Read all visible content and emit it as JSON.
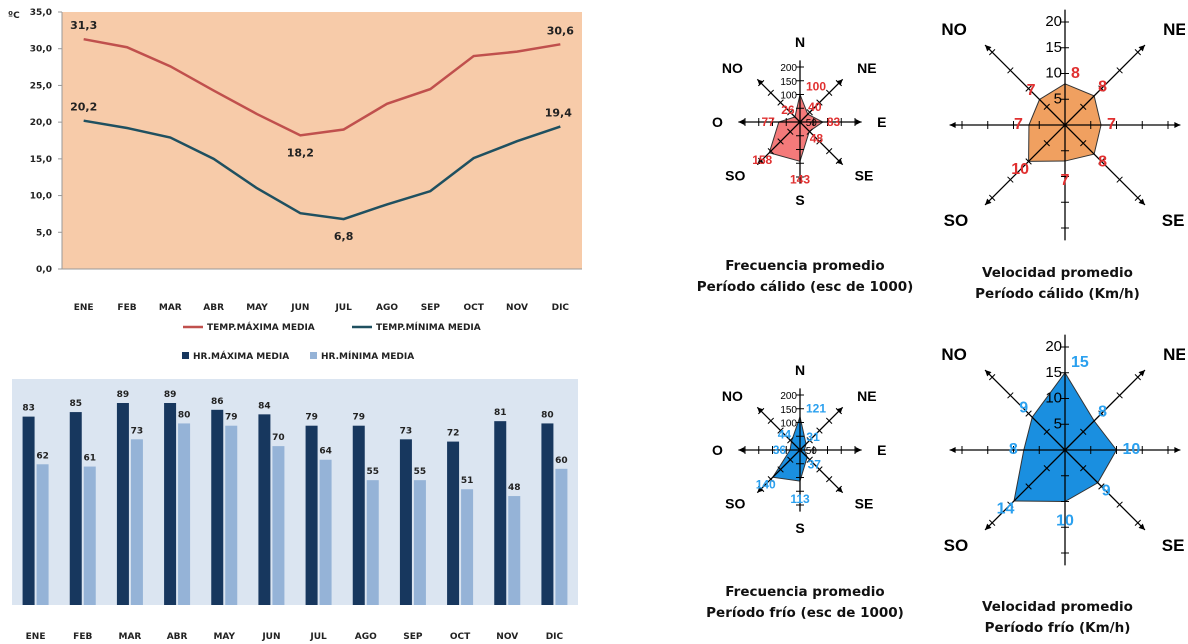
{
  "chart_data": [
    {
      "type": "line",
      "ylabel": "ºC",
      "categories": [
        "ENE",
        "FEB",
        "MAR",
        "ABR",
        "MAY",
        "JUN",
        "JUL",
        "AGO",
        "SEP",
        "OCT",
        "NOV",
        "DIC"
      ],
      "ylim": [
        0,
        35
      ],
      "yticks": [
        "0,0",
        "5,0",
        "10,0",
        "15,0",
        "20,0",
        "25,0",
        "30,0",
        "35,0"
      ],
      "grid": false,
      "legend_position": "bottom",
      "series": [
        {
          "name": "TEMP.MÁXIMA MEDIA",
          "color": "#c0504d",
          "values": [
            31.3,
            30.2,
            27.6,
            24.3,
            21.1,
            18.2,
            19.0,
            22.5,
            24.5,
            29.0,
            29.6,
            30.6
          ]
        },
        {
          "name": "TEMP.MÍNIMA MEDIA",
          "color": "#1f5060",
          "values": [
            20.2,
            19.2,
            17.9,
            15.0,
            11.0,
            7.6,
            6.8,
            8.8,
            10.6,
            15.1,
            17.4,
            19.4
          ]
        }
      ],
      "data_labels": [
        {
          "series": 0,
          "index": 0,
          "text": "31,3"
        },
        {
          "series": 0,
          "index": 5,
          "text": "18,2"
        },
        {
          "series": 0,
          "index": 11,
          "text": "30,6"
        },
        {
          "series": 1,
          "index": 0,
          "text": "20,2"
        },
        {
          "series": 1,
          "index": 6,
          "text": "6,8"
        },
        {
          "series": 1,
          "index": 11,
          "text": "19,4"
        }
      ],
      "background_color": "#f7cba9"
    },
    {
      "type": "bar",
      "categories": [
        "ENE",
        "FEB",
        "MAR",
        "ABR",
        "MAY",
        "JUN",
        "JUL",
        "AGO",
        "SEP",
        "OCT",
        "NOV",
        "DIC"
      ],
      "ylim": [
        0,
        100
      ],
      "legend_position": "top",
      "series": [
        {
          "name": "HR.MÁXIMA MEDIA",
          "color": "#17375e",
          "values": [
            83,
            85,
            89,
            89,
            86,
            84,
            79,
            79,
            73,
            72,
            81,
            80
          ]
        },
        {
          "name": "HR.MÍNIMA MEDIA",
          "color": "#95b3d7",
          "values": [
            62,
            61,
            73,
            80,
            79,
            70,
            64,
            55,
            55,
            51,
            48,
            60
          ]
        }
      ],
      "background_color": "#dbe5f1"
    },
    {
      "type": "radar",
      "directions": [
        "N",
        "NE",
        "E",
        "SE",
        "S",
        "SO",
        "O",
        "NO"
      ],
      "rmax": 200,
      "tick_labels": [
        "200",
        "150",
        "100"
      ],
      "e_tick_label": "50",
      "color": "#f47a7a",
      "label_color": "#e03030",
      "values": [
        100,
        40,
        83,
        48,
        143,
        158,
        77,
        26
      ],
      "value_labels": [
        "100",
        "40",
        "83",
        "48",
        "143",
        "158",
        "77",
        "26"
      ],
      "caption": [
        "Frecuencia promedio",
        "Período cálido (esc de 1000)"
      ]
    },
    {
      "type": "radar",
      "directions": [
        "N",
        "NE",
        "E",
        "SE",
        "S",
        "SO",
        "O",
        "NO"
      ],
      "rmax": 20,
      "tick_labels": [
        "20",
        "15",
        "10",
        "5"
      ],
      "color": "#f0a060",
      "label_color": "#e03030",
      "values": [
        8,
        8,
        7,
        8,
        7,
        10,
        7,
        7
      ],
      "value_labels": [
        "8",
        "8",
        "7",
        "8",
        "7",
        "10",
        "7",
        "7"
      ],
      "caption": [
        "Velocidad promedio",
        "Período cálido (Km/h)"
      ]
    },
    {
      "type": "radar",
      "directions": [
        "N",
        "NE",
        "E",
        "SE",
        "S",
        "SO",
        "O",
        "NO"
      ],
      "rmax": 200,
      "tick_labels": [
        "200",
        "150",
        "100"
      ],
      "e_tick_label": "50",
      "color": "#1a8fe0",
      "label_color": "#2aa0ef",
      "values": [
        121,
        31,
        16,
        37,
        113,
        140,
        36,
        44
      ],
      "value_labels": [
        "121",
        "31",
        "",
        "37",
        "113",
        "140",
        "36",
        "44"
      ],
      "caption": [
        "Frecuencia promedio",
        "Período frío (esc de 1000)"
      ]
    },
    {
      "type": "radar",
      "directions": [
        "N",
        "NE",
        "E",
        "SE",
        "S",
        "SO",
        "O",
        "NO"
      ],
      "rmax": 20,
      "tick_labels": [
        "20",
        "15",
        "10",
        "5"
      ],
      "color": "#1a8fe0",
      "label_color": "#2aa0ef",
      "values": [
        15,
        8,
        10,
        9,
        10,
        14,
        8,
        9
      ],
      "value_labels": [
        "15",
        "8",
        "10",
        "9",
        "10",
        "14",
        "8",
        "9"
      ],
      "caption": [
        "Velocidad promedio",
        "Período frío (Km/h)"
      ]
    }
  ]
}
